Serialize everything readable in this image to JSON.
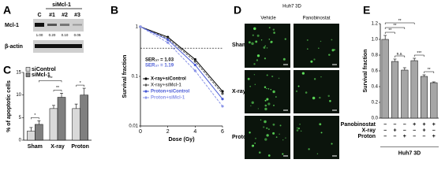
{
  "blot": {
    "panel": "A",
    "header": "siMcl-1",
    "lanes": [
      "C",
      "#1",
      "#2",
      "#3"
    ],
    "rows": [
      "Mcl-1",
      "β-actin"
    ],
    "quantification": [
      "1.00",
      "0.20",
      "0.10",
      "0.05"
    ]
  },
  "images": {
    "panel": "D",
    "title": "Huh7 3D",
    "columns": [
      "Vehicle",
      "Panobinostat"
    ],
    "rows": [
      "Sham",
      "X-ray",
      "Proton"
    ]
  },
  "chart_data": [
    {
      "panel": "B",
      "type": "line",
      "xlabel": "Dose (Gy)",
      "ylabel": "Survival fraction",
      "x": [
        0,
        2,
        4,
        6
      ],
      "xlim": [
        0,
        6
      ],
      "xticks": [
        0,
        2,
        4,
        6
      ],
      "ylim": [
        0.01,
        1
      ],
      "yticks": [
        0.01,
        0.1,
        1
      ],
      "log_y": true,
      "reference_line": 0.37,
      "legend": "center-left",
      "annotations": [
        {
          "text": "SER₃₇ = 1.03",
          "color": "#000000"
        },
        {
          "text": "SER₃₇ = 1.19",
          "color": "#4a5bd6"
        }
      ],
      "series": [
        {
          "name": "X-ray+siControl",
          "color": "#000000",
          "dash": false,
          "values": [
            1,
            0.62,
            0.22,
            0.05
          ]
        },
        {
          "name": "X-ray+siMcl-1",
          "color": "#555555",
          "dash": true,
          "values": [
            1,
            0.58,
            0.2,
            0.045
          ]
        },
        {
          "name": "Proton+siControl",
          "color": "#4a5bd6",
          "dash": false,
          "values": [
            1,
            0.55,
            0.17,
            0.035
          ]
        },
        {
          "name": "Proton+siMcl-1",
          "color": "#8a94e8",
          "dash": true,
          "values": [
            1,
            0.48,
            0.13,
            0.025
          ]
        }
      ]
    },
    {
      "panel": "C",
      "type": "bar",
      "ylabel": "% of apoptotic cells",
      "categories": [
        "Sham",
        "X-ray",
        "Proton"
      ],
      "ylim": [
        0,
        15
      ],
      "yticks": [
        0,
        5,
        10,
        15
      ],
      "legend": "upper-left",
      "series": [
        {
          "name": "siControl",
          "color": "#d9d9d9",
          "values": [
            2,
            7,
            7
          ],
          "errors": [
            0.8,
            0.7,
            1
          ]
        },
        {
          "name": "siMcl-1",
          "color": "#7f7f7f",
          "values": [
            3.5,
            9.5,
            10
          ],
          "errors": [
            0.8,
            0.9,
            1.5
          ]
        }
      ],
      "annotations": [
        "*",
        "***",
        "**",
        "*"
      ]
    },
    {
      "panel": "E",
      "type": "bar",
      "ylabel": "Survival fraction",
      "values": [
        1,
        0.72,
        0.61,
        0.73,
        0.53,
        0.45
      ],
      "errors": [
        0.05,
        0.03,
        0.03,
        0.03,
        0.02,
        0.01
      ],
      "color": "#a6a6a6",
      "ylim": [
        0,
        1.2
      ],
      "yticks": [
        {
          "value": 0,
          "label": "0.0"
        },
        0.2,
        0.4,
        0.6,
        0.8,
        {
          "value": 1,
          "label": "1.0"
        },
        1.2
      ],
      "conditions": [
        {
          "name": "Panobinostat",
          "signs": [
            "–",
            "–",
            "–",
            "+",
            "+",
            "+"
          ]
        },
        {
          "name": "X-ray",
          "signs": [
            "–",
            "+",
            "–",
            "–",
            "+",
            "–"
          ]
        },
        {
          "name": "Proton",
          "signs": [
            "–",
            "–",
            "+",
            "–",
            "–",
            "+"
          ]
        }
      ],
      "footer": "Huh7 3D",
      "annotations": [
        "**",
        "**",
        "n.s.",
        "**",
        "***",
        "**"
      ]
    }
  ]
}
